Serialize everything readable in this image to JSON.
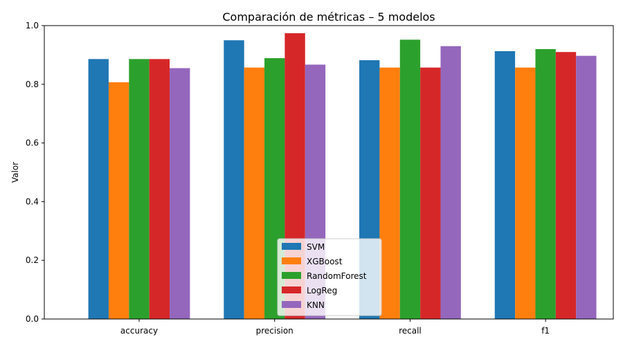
{
  "chart_data": {
    "type": "bar",
    "title": "Comparación de métricas – 5 modelos",
    "xlabel": "",
    "ylabel": "Valor",
    "ylim": [
      0,
      1.0
    ],
    "yticks": [
      "0.0",
      "0.2",
      "0.4",
      "0.6",
      "0.8",
      "1.0"
    ],
    "categories": [
      "accuracy",
      "precision",
      "recall",
      "f1"
    ],
    "series": [
      {
        "name": "SVM",
        "color": "#1f77b4",
        "values": [
          0.886,
          0.95,
          0.882,
          0.913
        ]
      },
      {
        "name": "XGBoost",
        "color": "#ff7f0e",
        "values": [
          0.807,
          0.857,
          0.857,
          0.857
        ]
      },
      {
        "name": "RandomForest",
        "color": "#2ca02c",
        "values": [
          0.886,
          0.889,
          0.952,
          0.92
        ]
      },
      {
        "name": "LogReg",
        "color": "#d62728",
        "values": [
          0.886,
          0.974,
          0.857,
          0.91
        ]
      },
      {
        "name": "KNN",
        "color": "#9467bd",
        "values": [
          0.855,
          0.867,
          0.93,
          0.897
        ]
      }
    ],
    "grid": false,
    "legend_position": "bottom-center"
  }
}
